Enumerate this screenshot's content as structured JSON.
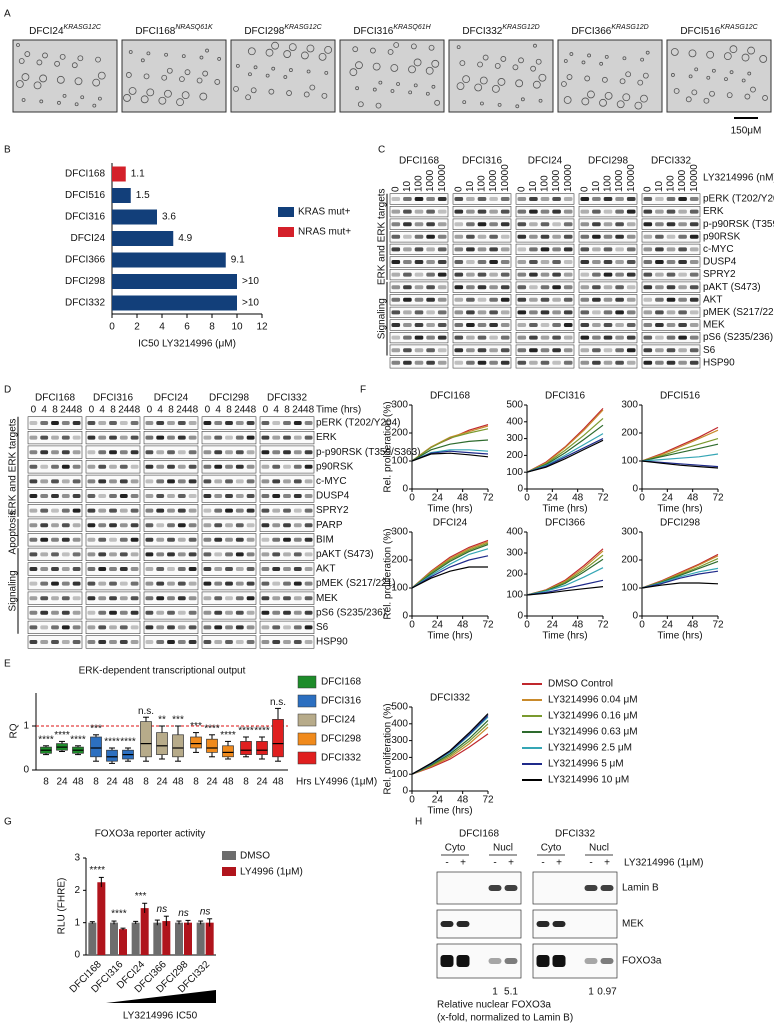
{
  "panel_labels": [
    "A",
    "B",
    "C",
    "D",
    "E",
    "F",
    "G",
    "H"
  ],
  "panel_a": {
    "images": [
      {
        "cell_line": "DFCI24",
        "mutation": "KRASG12C"
      },
      {
        "cell_line": "DFCI168",
        "mutation": "NRASQ61K"
      },
      {
        "cell_line": "DFCI298",
        "mutation": "KRASG12C"
      },
      {
        "cell_line": "DFCI316",
        "mutation": "KRASQ61H"
      },
      {
        "cell_line": "DFCI332",
        "mutation": "KRASG12D"
      },
      {
        "cell_line": "DFCI366",
        "mutation": "KRASG12D"
      },
      {
        "cell_line": "DFCI516",
        "mutation": "KRASG12C"
      }
    ],
    "scale_bar": "150μM"
  },
  "panel_c": {
    "cell_lines": [
      "DFCI168",
      "DFCI316",
      "DFCI24",
      "DFCI298",
      "DFCI332"
    ],
    "doses": [
      0,
      10,
      100,
      1000,
      10000
    ],
    "dose_label": "LY3214996 (nM)",
    "proteins": [
      "pERK (T202/Y204)",
      "ERK",
      "p-p90RSK (T359/S363)",
      "p90RSK",
      "c-MYC",
      "DUSP4",
      "SPRY2",
      "pAKT (S473)",
      "AKT",
      "pMEK (S217/221)",
      "MEK",
      "pS6 (S235/236)",
      "S6",
      "HSP90"
    ],
    "groups": [
      "ERK and ERK targets",
      "Signaling"
    ]
  },
  "panel_d": {
    "cell_lines": [
      "DFCI168",
      "DFCI316",
      "DFCI24",
      "DFCI298",
      "DFCI332"
    ],
    "time_points": [
      0,
      4,
      8,
      24,
      48
    ],
    "time_label": "Time (hrs)",
    "proteins": [
      "pERK (T202/Y204)",
      "ERK",
      "p-p90RSK (T359/S363)",
      "p90RSK",
      "c-MYC",
      "DUSP4",
      "SPRY2",
      "PARP",
      "BIM",
      "pAKT (S473)",
      "AKT",
      "pMEK (S217/221)",
      "MEK",
      "pS6 (S235/236)",
      "S6",
      "HSP90"
    ],
    "groups": [
      "ERK and ERK targets",
      "Apoptosis",
      "Signaling"
    ]
  },
  "panel_h": {
    "cell_lines": [
      "DFCI168",
      "DFCI332"
    ],
    "fractions": [
      "Cyto",
      "Nucl"
    ],
    "treatment_signs": [
      "-",
      "+"
    ],
    "treatment_label": "LY3214996 (1μM)",
    "proteins": [
      "Lamin B",
      "MEK",
      "FOXO3a"
    ],
    "relative_values": [
      [
        1,
        5.1
      ],
      [
        1,
        0.97
      ]
    ],
    "relative_label": "Relative nuclear FOXO3a",
    "relative_note": "(x-fold, normalized to Lamin B)"
  },
  "chart_data": [
    {
      "type": "hbar",
      "xlabel": "IC50 LY3214996 (μM)",
      "categories": [
        "DFCI168",
        "DFCI516",
        "DFCI316",
        "DFCI24",
        "DFCI366",
        "DFCI298",
        "DFCI332"
      ],
      "values": [
        1.1,
        1.5,
        3.6,
        4.9,
        9.1,
        10,
        10
      ],
      "value_labels": [
        "1.1",
        "1.5",
        "3.6",
        "4.9",
        "9.1",
        ">10",
        ">10"
      ],
      "colors": [
        "#d4202a",
        "#123f7a",
        "#123f7a",
        "#123f7a",
        "#123f7a",
        "#123f7a",
        "#123f7a"
      ],
      "xlim": [
        0,
        12
      ],
      "xticks": [
        0,
        2,
        4,
        6,
        8,
        10,
        12
      ],
      "legend": [
        {
          "name": "KRAS mut+",
          "color": "#123f7a"
        },
        {
          "name": "NRAS mut+",
          "color": "#d4202a"
        }
      ]
    },
    {
      "type": "box",
      "title": "ERK-dependent transcriptional output",
      "ylabel": "RQ",
      "xlabel": "Hrs LY4996 (1μM)",
      "ylim": [
        0,
        1.75
      ],
      "yticks": [
        0,
        1
      ],
      "reference_line": 1,
      "categories": [
        8,
        24,
        48
      ],
      "series": [
        {
          "name": "DFCI168",
          "color": "#1e8c2a",
          "median": [
            0.45,
            0.52,
            0.45
          ],
          "q1": [
            0.38,
            0.45,
            0.38
          ],
          "q3": [
            0.52,
            0.6,
            0.52
          ],
          "min": [
            0.35,
            0.42,
            0.35
          ],
          "max": [
            0.55,
            0.65,
            0.55
          ],
          "annotations": [
            "****",
            "****",
            "****"
          ]
        },
        {
          "name": "DFCI316",
          "color": "#2c6fc0",
          "median": [
            0.5,
            0.3,
            0.35
          ],
          "q1": [
            0.3,
            0.2,
            0.25
          ],
          "q3": [
            0.75,
            0.45,
            0.45
          ],
          "min": [
            0.2,
            0.15,
            0.2
          ],
          "max": [
            0.8,
            0.5,
            0.5
          ],
          "annotations": [
            "***",
            "****",
            "****"
          ]
        },
        {
          "name": "DFCI24",
          "color": "#b7ab8a",
          "median": [
            0.6,
            0.55,
            0.5
          ],
          "q1": [
            0.3,
            0.35,
            0.3
          ],
          "q3": [
            1.1,
            0.85,
            0.8
          ],
          "min": [
            0.2,
            0.25,
            0.2
          ],
          "max": [
            1.2,
            1.0,
            1.0
          ],
          "annotations": [
            "n.s.",
            "**",
            "***"
          ]
        },
        {
          "name": "DFCI298",
          "color": "#f08a1c",
          "median": [
            0.6,
            0.5,
            0.4
          ],
          "q1": [
            0.5,
            0.4,
            0.3
          ],
          "q3": [
            0.75,
            0.7,
            0.55
          ],
          "min": [
            0.4,
            0.3,
            0.25
          ],
          "max": [
            0.85,
            0.8,
            0.65
          ],
          "annotations": [
            "***",
            "****",
            "****"
          ]
        },
        {
          "name": "DFCI332",
          "color": "#e01f1f",
          "median": [
            0.45,
            0.45,
            0.6
          ],
          "q1": [
            0.35,
            0.35,
            0.3
          ],
          "q3": [
            0.65,
            0.65,
            1.15
          ],
          "min": [
            0.3,
            0.25,
            0.2
          ],
          "max": [
            0.75,
            0.75,
            1.4
          ],
          "annotations": [
            "****",
            "****",
            "n.s."
          ]
        }
      ]
    },
    {
      "type": "line",
      "ylabel": "Rel. proliferation (%)",
      "xlabel": "Time (hrs)",
      "x": [
        0,
        18,
        36,
        54,
        72
      ],
      "xlim": [
        0,
        72
      ],
      "xticks": [
        0,
        24,
        48,
        72
      ],
      "series": [
        {
          "name": "DMSO Control",
          "color": "#c0282d"
        },
        {
          "name": "LY3214996 0.04 μM",
          "color": "#c98a2b"
        },
        {
          "name": "LY3214996 0.16 μM",
          "color": "#7a9a2e"
        },
        {
          "name": "LY3214996 0.63 μM",
          "color": "#2e6b2e"
        },
        {
          "name": "LY3214996 2.5 μM",
          "color": "#35a6b5"
        },
        {
          "name": "LY3214996 5 μM",
          "color": "#1f2a8a"
        },
        {
          "name": "LY3214996 10 μM",
          "color": "#000000"
        }
      ],
      "panels": [
        {
          "title": "DFCI168",
          "ylim": [
            0,
            300
          ],
          "yticks": [
            0,
            100,
            200,
            300
          ],
          "values": [
            [
              100,
              150,
              180,
              210,
              230
            ],
            [
              100,
              150,
              185,
              205,
              225
            ],
            [
              100,
              148,
              182,
              200,
              215
            ],
            [
              100,
              140,
              160,
              170,
              175
            ],
            [
              100,
              130,
              140,
              140,
              135
            ],
            [
              100,
              128,
              135,
              130,
              125
            ],
            [
              100,
              125,
              128,
              122,
              115
            ]
          ]
        },
        {
          "title": "DFCI316",
          "ylim": [
            0,
            500
          ],
          "yticks": [
            0,
            100,
            200,
            300,
            400,
            500
          ],
          "values": [
            [
              100,
              160,
              250,
              360,
              480
            ],
            [
              100,
              155,
              245,
              350,
              470
            ],
            [
              100,
              150,
              230,
              320,
              420
            ],
            [
              100,
              145,
              215,
              295,
              380
            ],
            [
              100,
              140,
              200,
              265,
              330
            ],
            [
              100,
              135,
              190,
              245,
              300
            ],
            [
              100,
              130,
              180,
              235,
              290
            ]
          ]
        },
        {
          "title": "DFCI516",
          "ylim": [
            0,
            300
          ],
          "yticks": [
            0,
            100,
            200,
            300
          ],
          "values": [
            [
              100,
              125,
              155,
              185,
              220
            ],
            [
              100,
              122,
              150,
              180,
              210
            ],
            [
              100,
              118,
              140,
              160,
              180
            ],
            [
              100,
              115,
              130,
              145,
              160
            ],
            [
              100,
              105,
              110,
              115,
              125
            ],
            [
              100,
              95,
              90,
              85,
              80
            ],
            [
              100,
              92,
              85,
              80,
              75
            ]
          ]
        },
        {
          "title": "DFCI24",
          "ylim": [
            0,
            300
          ],
          "yticks": [
            0,
            100,
            200,
            300
          ],
          "values": [
            [
              100,
              160,
              210,
              245,
              270
            ],
            [
              100,
              158,
              205,
              240,
              265
            ],
            [
              100,
              155,
              200,
              235,
              260
            ],
            [
              100,
              150,
              195,
              230,
              255
            ],
            [
              100,
              145,
              185,
              220,
              240
            ],
            [
              100,
              140,
              175,
              200,
              215
            ],
            [
              100,
              135,
              160,
              175,
              175
            ]
          ]
        },
        {
          "title": "DFCI366",
          "ylim": [
            0,
            400
          ],
          "yticks": [
            0,
            100,
            200,
            300,
            400
          ],
          "values": [
            [
              100,
              125,
              170,
              240,
              320
            ],
            [
              100,
              123,
              165,
              230,
              310
            ],
            [
              100,
              122,
              160,
              220,
              290
            ],
            [
              100,
              120,
              155,
              210,
              270
            ],
            [
              100,
              118,
              145,
              185,
              230
            ],
            [
              100,
              112,
              130,
              150,
              170
            ],
            [
              100,
              108,
              120,
              130,
              140
            ]
          ]
        },
        {
          "title": "DFCI298",
          "ylim": [
            0,
            300
          ],
          "yticks": [
            0,
            100,
            200,
            300
          ],
          "values": [
            [
              100,
              125,
              155,
              185,
              220
            ],
            [
              100,
              123,
              152,
              182,
              215
            ],
            [
              100,
              122,
              148,
              175,
              205
            ],
            [
              100,
              120,
              145,
              170,
              195
            ],
            [
              100,
              118,
              140,
              158,
              170
            ],
            [
              100,
              115,
              135,
              150,
              160
            ],
            [
              100,
              110,
              118,
              118,
              115
            ]
          ]
        },
        {
          "title": "DFCI332",
          "ylim": [
            0,
            500
          ],
          "yticks": [
            0,
            100,
            200,
            300,
            400,
            500
          ],
          "values": [
            [
              100,
              140,
              190,
              260,
              340
            ],
            [
              100,
              145,
              200,
              280,
              380
            ],
            [
              100,
              150,
              210,
              295,
              400
            ],
            [
              100,
              155,
              220,
              310,
              420
            ],
            [
              100,
              160,
              230,
              330,
              440
            ],
            [
              100,
              162,
              235,
              335,
              450
            ],
            [
              100,
              165,
              240,
              345,
              460
            ]
          ]
        }
      ]
    },
    {
      "type": "bar",
      "title": "FOXO3a reporter activity",
      "ylabel": "RLU (FHRE)",
      "xlabel": "LY3214996 IC50",
      "categories": [
        "DFCI168",
        "DFCI316",
        "DFCI24",
        "DFCI366",
        "DFCI298",
        "DFCI332"
      ],
      "ylim": [
        0,
        3
      ],
      "yticks": [
        0,
        1,
        2,
        3
      ],
      "series": [
        {
          "name": "DMSO",
          "color": "#6d6d6d",
          "values": [
            1,
            1,
            1,
            1,
            1,
            1
          ],
          "errors": [
            0.03,
            0.05,
            0.04,
            0.08,
            0.05,
            0.05
          ]
        },
        {
          "name": "LY4996 (1μM)",
          "color": "#b0141c",
          "values": [
            2.25,
            0.8,
            1.45,
            1.05,
            1.0,
            1.0
          ],
          "errors": [
            0.15,
            0.03,
            0.15,
            0.15,
            0.07,
            0.12
          ]
        }
      ],
      "annotations": [
        "****",
        "****",
        "***",
        "ns",
        "ns",
        "ns"
      ]
    }
  ]
}
